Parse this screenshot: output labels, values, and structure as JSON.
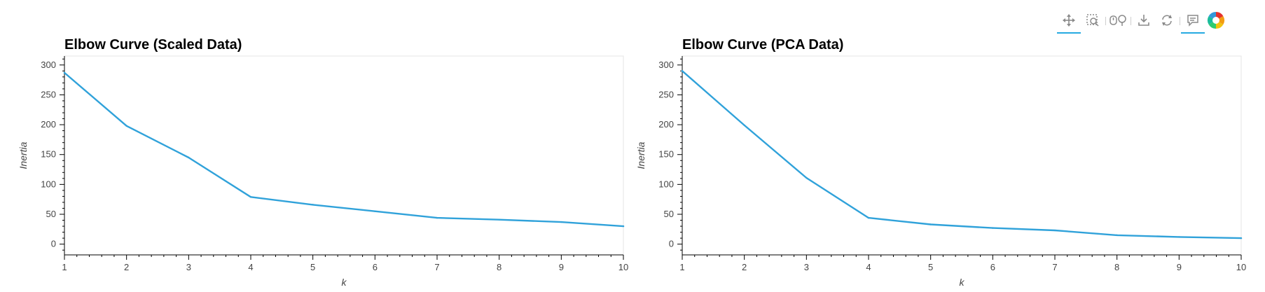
{
  "toolbar": {
    "tools": [
      {
        "name": "pan-tool",
        "icon": "move-arrows-icon",
        "active": true
      },
      {
        "name": "box-zoom-tool",
        "icon": "box-zoom-icon",
        "active": false
      },
      {
        "name": "wheel-zoom-tool",
        "icon": "wheel-zoom-icon",
        "active": false
      },
      {
        "name": "save-tool",
        "icon": "download-icon",
        "active": false
      },
      {
        "name": "reset-tool",
        "icon": "reset-icon",
        "active": false
      },
      {
        "name": "hover-tool",
        "icon": "hover-tooltip-icon",
        "active": true
      },
      {
        "name": "bokeh-logo",
        "icon": "bokeh-logo-icon",
        "active": false
      }
    ],
    "active_color": "#26aae1"
  },
  "line_color": "#30a2da",
  "chart_data": [
    {
      "type": "line",
      "title": "Elbow Curve (Scaled Data)",
      "xlabel": "k",
      "ylabel": "Inertia",
      "x": [
        1,
        2,
        3,
        4,
        5,
        6,
        7,
        8,
        9,
        10
      ],
      "y": [
        287,
        198,
        145,
        79,
        66,
        55,
        44,
        41,
        37,
        30
      ],
      "xlim": [
        1,
        10
      ],
      "ylim": [
        -18,
        315
      ],
      "xticks": [
        1,
        2,
        3,
        4,
        5,
        6,
        7,
        8,
        9,
        10
      ],
      "yticks": [
        0,
        50,
        100,
        150,
        200,
        250,
        300
      ],
      "grid": false,
      "legend": "none"
    },
    {
      "type": "line",
      "title": "Elbow Curve (PCA Data)",
      "xlabel": "k",
      "ylabel": "Inertia",
      "x": [
        1,
        2,
        3,
        4,
        5,
        6,
        7,
        8,
        9,
        10
      ],
      "y": [
        290,
        199,
        111,
        44,
        33,
        27,
        23,
        15,
        12,
        10
      ],
      "xlim": [
        1,
        10
      ],
      "ylim": [
        -18,
        315
      ],
      "xticks": [
        1,
        2,
        3,
        4,
        5,
        6,
        7,
        8,
        9,
        10
      ],
      "yticks": [
        0,
        50,
        100,
        150,
        200,
        250,
        300
      ],
      "grid": false,
      "legend": "none"
    }
  ]
}
